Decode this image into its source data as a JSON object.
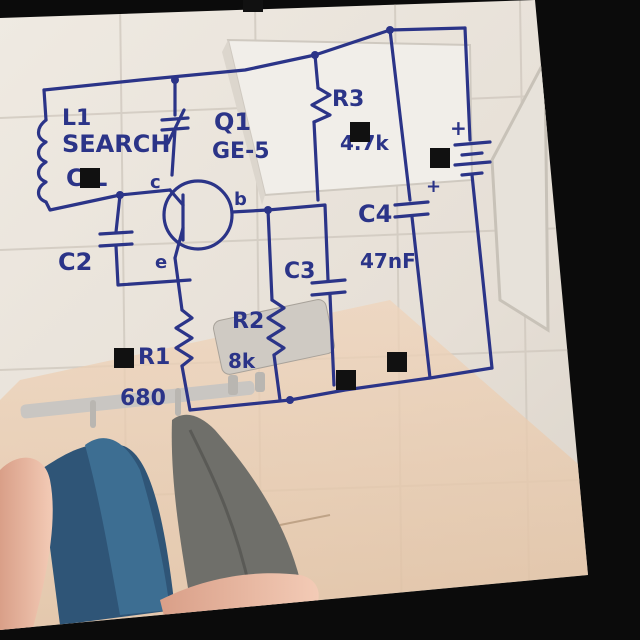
{
  "schematic": {
    "coil_label_line1": "L1",
    "coil_label_line2": "SEARCH",
    "coil_label_line3": "C   L",
    "transistor_ref": "Q1",
    "transistor_part": "GE-5",
    "pin_c": "c",
    "pin_b": "b",
    "pin_e": "e",
    "c2_label": "C2",
    "c3_label": "C3",
    "c4_ref": "C4",
    "c4_value": "47nF",
    "r3_ref": "R3",
    "r3_value": "4.7k",
    "r2_ref": "R2",
    "r2_value": "8k",
    "r1_ref": "R1",
    "r1_value": "680",
    "plus_marker": "+",
    "plus_marker_2": "+"
  },
  "colors": {
    "ink": "#2b3488",
    "tile": "#e9e4dc",
    "grout": "#d2cdc4",
    "frame": "#0b0b0b"
  }
}
